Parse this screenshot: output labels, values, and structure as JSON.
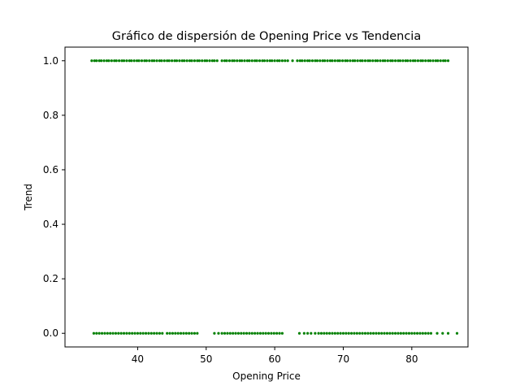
{
  "chart_data": {
    "type": "scatter",
    "title": "Gráfico de dispersión de Opening Price vs Tendencia",
    "xlabel": "Opening Price",
    "ylabel": "Trend",
    "xlim": [
      29.4,
      88.2
    ],
    "ylim": [
      -0.05,
      1.05
    ],
    "x_ticks": [
      40,
      50,
      60,
      70,
      80
    ],
    "x_tick_labels": [
      "40",
      "50",
      "60",
      "70",
      "80"
    ],
    "y_ticks": [
      0.0,
      0.2,
      0.4,
      0.6,
      0.8,
      1.0
    ],
    "y_tick_labels": [
      "0.0",
      "0.2",
      "0.4",
      "0.6",
      "0.8",
      "1.0"
    ],
    "grid": false,
    "marker_color": "#008000",
    "series": [
      {
        "y": 1.0,
        "x": [
          33.3,
          33.7,
          34.0,
          34.4,
          34.7,
          35.1,
          35.5,
          35.8,
          36.2,
          36.6,
          36.9,
          37.3,
          37.7,
          38.0,
          38.4,
          38.8,
          39.1,
          39.5,
          39.9,
          40.2,
          40.6,
          41.0,
          41.3,
          41.7,
          42.1,
          42.4,
          42.8,
          43.2,
          43.5,
          43.9,
          44.3,
          44.6,
          45.0,
          45.4,
          45.7,
          46.1,
          46.5,
          46.8,
          47.2,
          47.6,
          47.9,
          48.3,
          48.7,
          49.0,
          49.4,
          49.8,
          50.1,
          50.5,
          50.9,
          51.2,
          51.6,
          52.3,
          52.7,
          53.0,
          53.4,
          53.8,
          54.1,
          54.5,
          54.9,
          55.2,
          55.6,
          56.0,
          56.3,
          56.7,
          57.1,
          57.4,
          57.8,
          58.2,
          58.5,
          58.9,
          59.3,
          59.6,
          60.0,
          60.4,
          60.7,
          61.1,
          61.5,
          61.9,
          62.6,
          63.3,
          63.7,
          64.0,
          64.4,
          64.8,
          65.1,
          65.5,
          65.9,
          66.2,
          66.6,
          67.0,
          67.3,
          67.7,
          68.1,
          68.4,
          68.8,
          69.2,
          69.5,
          69.9,
          70.3,
          70.6,
          71.0,
          71.4,
          71.7,
          72.1,
          72.5,
          72.8,
          73.2,
          73.6,
          73.9,
          74.3,
          74.7,
          75.0,
          75.4,
          75.8,
          76.1,
          76.5,
          76.9,
          77.2,
          77.6,
          78.0,
          78.3,
          78.7,
          79.1,
          79.4,
          79.8,
          80.2,
          80.5,
          80.9,
          81.3,
          81.6,
          82.0,
          82.4,
          82.7,
          83.1,
          83.5,
          83.8,
          84.2,
          84.6,
          84.9,
          85.3
        ]
      },
      {
        "y": 0.0,
        "x": [
          33.6,
          34.0,
          34.4,
          34.8,
          35.2,
          35.6,
          36.0,
          36.4,
          36.8,
          37.2,
          37.6,
          38.0,
          38.4,
          38.8,
          39.2,
          39.6,
          40.0,
          40.4,
          40.8,
          41.2,
          41.6,
          42.0,
          42.4,
          42.8,
          43.2,
          43.6,
          44.3,
          44.7,
          45.1,
          45.5,
          45.9,
          46.3,
          46.7,
          47.1,
          47.5,
          47.9,
          48.3,
          48.7,
          51.2,
          51.8,
          52.3,
          52.7,
          53.1,
          53.5,
          53.9,
          54.3,
          54.7,
          55.1,
          55.5,
          55.9,
          56.3,
          56.7,
          57.1,
          57.5,
          57.9,
          58.3,
          58.7,
          59.1,
          59.5,
          59.9,
          60.3,
          60.7,
          61.1,
          63.6,
          64.3,
          64.8,
          65.3,
          65.9,
          66.4,
          66.8,
          67.2,
          67.6,
          68.0,
          68.4,
          68.8,
          69.2,
          69.6,
          70.0,
          70.4,
          70.8,
          71.2,
          71.6,
          72.0,
          72.4,
          72.8,
          73.2,
          73.6,
          74.0,
          74.4,
          74.8,
          75.2,
          75.6,
          76.0,
          76.4,
          76.8,
          77.2,
          77.6,
          78.0,
          78.4,
          78.8,
          79.2,
          79.6,
          80.0,
          80.4,
          80.8,
          81.2,
          81.6,
          82.0,
          82.4,
          82.8,
          83.7,
          84.5,
          85.3,
          86.6
        ]
      }
    ]
  }
}
